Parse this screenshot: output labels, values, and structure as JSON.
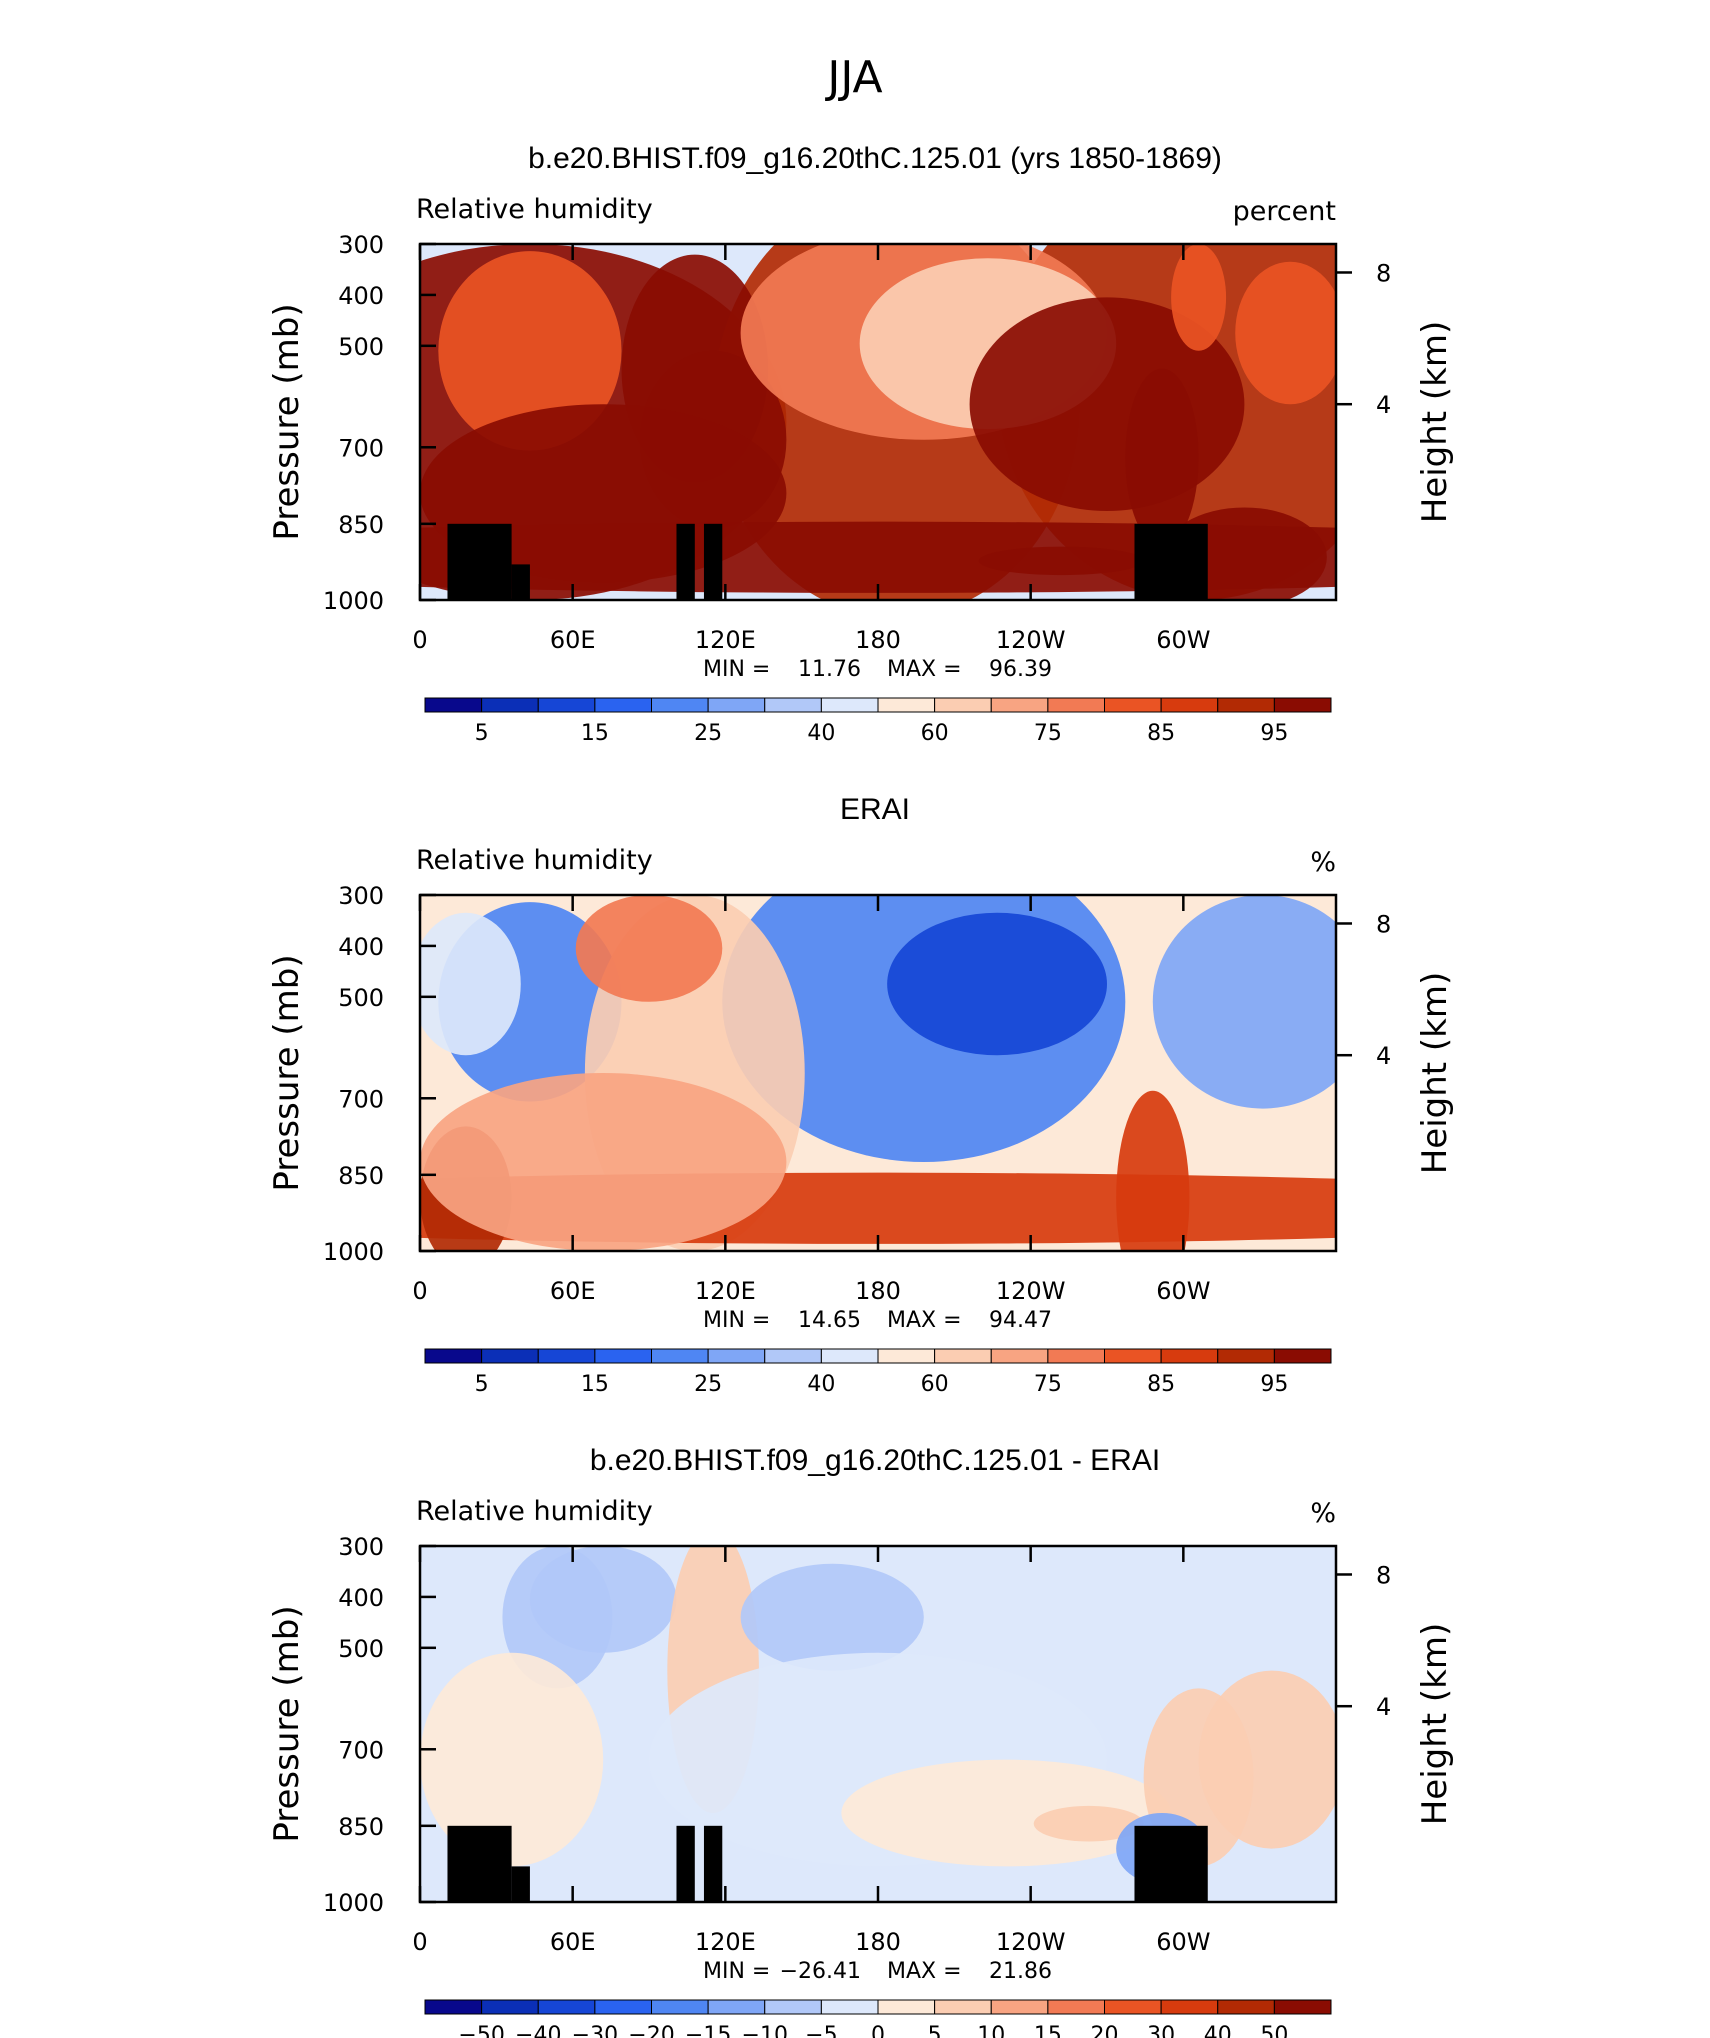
{
  "figure": {
    "title": "JJA"
  },
  "chart_data": [
    {
      "type": "heatmap",
      "title": "b.e20.BHIST.f09_g16.20thC.125.01 (yrs 1850-1869)",
      "variable": "Relative humidity",
      "units": "percent",
      "ylabel": "Pressure (mb)",
      "ylabel_right": "Height (km)",
      "x_ticks": [
        "0",
        "60E",
        "120E",
        "180",
        "120W",
        "60W"
      ],
      "y_ticks": [
        "300",
        "400",
        "500",
        "700",
        "850",
        "1000"
      ],
      "right_ticks": [
        "8",
        "4"
      ],
      "ylim": [
        1000,
        300
      ],
      "min_label": "MIN =",
      "min": "11.76",
      "max_label": "MAX =",
      "max": "96.39",
      "colorbar": {
        "labels": [
          "5",
          "15",
          "25",
          "40",
          "60",
          "75",
          "85",
          "95"
        ],
        "colors": [
          "#08088c",
          "#0b2fb7",
          "#1646d6",
          "#2a63f0",
          "#4f86f3",
          "#7fa6f6",
          "#b1c8f8",
          "#dde8fb",
          "#fde9d8",
          "#fbcdb2",
          "#f8a482",
          "#f27a54",
          "#ea5424",
          "#d73b0e",
          "#b22a04",
          "#8a0c02"
        ]
      },
      "fields": [
        {
          "x": 0.12,
          "y": 0.5,
          "rx": 0.28,
          "ry": 0.5,
          "v": 45
        },
        {
          "x": 0.52,
          "y": 0.45,
          "rx": 0.2,
          "ry": 0.6,
          "v": 40
        },
        {
          "x": 0.85,
          "y": 0.4,
          "rx": 0.22,
          "ry": 0.6,
          "v": 42
        },
        {
          "x": 0.12,
          "y": 0.3,
          "rx": 0.1,
          "ry": 0.28,
          "v": 28
        },
        {
          "x": 0.3,
          "y": 0.35,
          "rx": 0.08,
          "ry": 0.32,
          "v": 72
        },
        {
          "x": 0.32,
          "y": 0.55,
          "rx": 0.08,
          "ry": 0.25,
          "v": 78
        },
        {
          "x": 0.55,
          "y": 0.25,
          "rx": 0.2,
          "ry": 0.3,
          "v": 20
        },
        {
          "x": 0.62,
          "y": 0.28,
          "rx": 0.14,
          "ry": 0.24,
          "v": 12
        },
        {
          "x": 0.75,
          "y": 0.45,
          "rx": 0.15,
          "ry": 0.3,
          "v": 45
        },
        {
          "x": 0.81,
          "y": 0.6,
          "rx": 0.04,
          "ry": 0.25,
          "v": 85
        },
        {
          "x": 0.85,
          "y": 0.15,
          "rx": 0.03,
          "ry": 0.15,
          "v": 25
        },
        {
          "x": 0.95,
          "y": 0.25,
          "rx": 0.06,
          "ry": 0.2,
          "v": 28
        },
        {
          "x": 0.5,
          "y": 0.88,
          "rx": 0.9,
          "ry": 0.1,
          "v": 85
        },
        {
          "x": 0.9,
          "y": 0.88,
          "rx": 0.09,
          "ry": 0.14,
          "v": 92
        },
        {
          "x": 0.7,
          "y": 0.89,
          "rx": 0.09,
          "ry": 0.04,
          "v": 96
        },
        {
          "x": 0.2,
          "y": 0.7,
          "rx": 0.2,
          "ry": 0.25,
          "v": 68
        }
      ],
      "terrain": [
        [
          0.03,
          0.1,
          850
        ],
        [
          0.1,
          0.12,
          500
        ],
        [
          0.28,
          0.3,
          850
        ],
        [
          0.31,
          0.33,
          850
        ],
        [
          0.78,
          0.86,
          850
        ]
      ]
    },
    {
      "type": "heatmap",
      "title": "ERAI",
      "variable": "Relative humidity",
      "units": "%",
      "ylabel": "Pressure (mb)",
      "ylabel_right": "Height (km)",
      "x_ticks": [
        "0",
        "60E",
        "120E",
        "180",
        "120W",
        "60W"
      ],
      "y_ticks": [
        "300",
        "400",
        "500",
        "700",
        "850",
        "1000"
      ],
      "right_ticks": [
        "8",
        "4"
      ],
      "ylim": [
        1000,
        300
      ],
      "min_label": "MIN =",
      "min": "14.65",
      "max_label": "MAX =",
      "max": "94.47",
      "colorbar": {
        "labels": [
          "5",
          "15",
          "25",
          "40",
          "60",
          "75",
          "85",
          "95"
        ],
        "colors": [
          "#08088c",
          "#0b2fb7",
          "#1646d6",
          "#2a63f0",
          "#4f86f3",
          "#7fa6f6",
          "#b1c8f8",
          "#dde8fb",
          "#fde9d8",
          "#fbcdb2",
          "#f8a482",
          "#f27a54",
          "#ea5424",
          "#d73b0e",
          "#b22a04",
          "#8a0c02"
        ]
      },
      "fields": [
        {
          "x": 0.12,
          "y": 0.3,
          "rx": 0.1,
          "ry": 0.28,
          "v": 30
        },
        {
          "x": 0.05,
          "y": 0.25,
          "rx": 0.06,
          "ry": 0.2,
          "v": 45
        },
        {
          "x": 0.55,
          "y": 0.3,
          "rx": 0.22,
          "ry": 0.45,
          "v": 30
        },
        {
          "x": 0.63,
          "y": 0.25,
          "rx": 0.12,
          "ry": 0.2,
          "v": 15
        },
        {
          "x": 0.92,
          "y": 0.3,
          "rx": 0.12,
          "ry": 0.3,
          "v": 35
        },
        {
          "x": 0.3,
          "y": 0.5,
          "rx": 0.12,
          "ry": 0.5,
          "v": 62
        },
        {
          "x": 0.25,
          "y": 0.15,
          "rx": 0.08,
          "ry": 0.15,
          "v": 70
        },
        {
          "x": 0.5,
          "y": 0.88,
          "rx": 0.9,
          "ry": 0.1,
          "v": 85
        },
        {
          "x": 0.05,
          "y": 0.85,
          "rx": 0.05,
          "ry": 0.2,
          "v": 92
        },
        {
          "x": 0.8,
          "y": 0.85,
          "rx": 0.04,
          "ry": 0.3,
          "v": 85
        },
        {
          "x": 0.2,
          "y": 0.75,
          "rx": 0.2,
          "ry": 0.25,
          "v": 68
        }
      ],
      "terrain": []
    },
    {
      "type": "heatmap",
      "title": "b.e20.BHIST.f09_g16.20thC.125.01 - ERAI",
      "variable": "Relative humidity",
      "units": "%",
      "ylabel": "Pressure (mb)",
      "ylabel_right": "Height (km)",
      "x_ticks": [
        "0",
        "60E",
        "120E",
        "180",
        "120W",
        "60W"
      ],
      "y_ticks": [
        "300",
        "400",
        "500",
        "700",
        "850",
        "1000"
      ],
      "right_ticks": [
        "8",
        "4"
      ],
      "ylim": [
        1000,
        300
      ],
      "min_label": "MIN =",
      "min": "−26.41",
      "max_label": "MAX =",
      "max": "21.86",
      "colorbar": {
        "labels": [
          "−50",
          "−40",
          "−30",
          "−20",
          "−15",
          "−10",
          "−5",
          "0",
          "5",
          "10",
          "15",
          "20",
          "30",
          "40",
          "50"
        ],
        "colors": [
          "#08088c",
          "#0b2fb7",
          "#1646d6",
          "#2a63f0",
          "#4f86f3",
          "#7fa6f6",
          "#b1c8f8",
          "#dde8fb",
          "#fde9d8",
          "#fbcdb2",
          "#f8a482",
          "#f27a54",
          "#ea5424",
          "#d73b0e",
          "#b22a04",
          "#8a0c02"
        ]
      },
      "fields": [
        {
          "x": 0.15,
          "y": 0.2,
          "rx": 0.06,
          "ry": 0.2,
          "v": -8
        },
        {
          "x": 0.2,
          "y": 0.15,
          "rx": 0.08,
          "ry": 0.15,
          "v": -12
        },
        {
          "x": 0.32,
          "y": 0.35,
          "rx": 0.05,
          "ry": 0.4,
          "v": 12
        },
        {
          "x": 0.45,
          "y": 0.2,
          "rx": 0.1,
          "ry": 0.15,
          "v": -12
        },
        {
          "x": 0.5,
          "y": 0.6,
          "rx": 0.25,
          "ry": 0.3,
          "v": -3
        },
        {
          "x": 0.64,
          "y": 0.75,
          "rx": 0.18,
          "ry": 0.15,
          "v": 6
        },
        {
          "x": 0.73,
          "y": 0.78,
          "rx": 0.06,
          "ry": 0.05,
          "v": 12
        },
        {
          "x": 0.85,
          "y": 0.65,
          "rx": 0.06,
          "ry": 0.25,
          "v": 9
        },
        {
          "x": 0.93,
          "y": 0.6,
          "rx": 0.08,
          "ry": 0.25,
          "v": 11
        },
        {
          "x": 0.81,
          "y": 0.85,
          "rx": 0.05,
          "ry": 0.1,
          "v": -15
        },
        {
          "x": 0.1,
          "y": 0.6,
          "rx": 0.1,
          "ry": 0.3,
          "v": 3
        }
      ],
      "terrain": [
        [
          0.03,
          0.1,
          850
        ],
        [
          0.1,
          0.12,
          500
        ],
        [
          0.28,
          0.3,
          850
        ],
        [
          0.31,
          0.33,
          850
        ],
        [
          0.78,
          0.86,
          850
        ]
      ]
    }
  ]
}
